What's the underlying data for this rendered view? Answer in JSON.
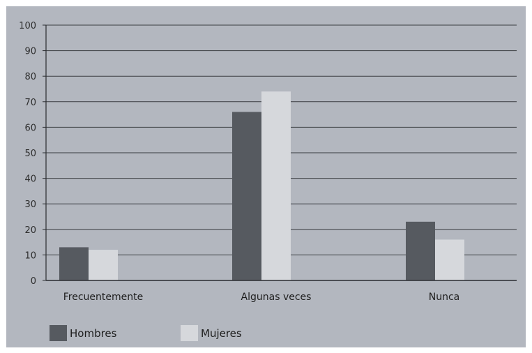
{
  "chart_data": {
    "type": "bar",
    "categories": [
      "Frecuentemente",
      "Algunas veces",
      "Nunca"
    ],
    "series": [
      {
        "name": "Hombres",
        "values": [
          13,
          66,
          23
        ],
        "color": "#565a60"
      },
      {
        "name": "Mujeres",
        "values": [
          12,
          74,
          16
        ],
        "color": "#d6d8dc"
      }
    ],
    "ylim": [
      0,
      100
    ],
    "yticks": [
      0,
      10,
      20,
      30,
      40,
      50,
      60,
      70,
      80,
      90,
      100
    ],
    "grid": true,
    "legend_position": "bottom-left",
    "background_color": "#b3b7bf",
    "gridline_color": "#3a3c40"
  }
}
